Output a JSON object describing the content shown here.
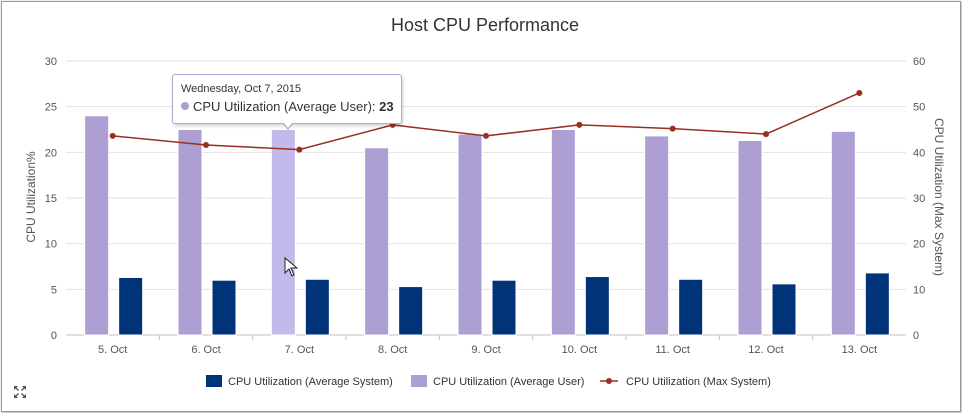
{
  "chart_data": {
    "type": "bar",
    "title": "Host CPU Performance",
    "categories": [
      "5. Oct",
      "6. Oct",
      "7. Oct",
      "8. Oct",
      "9. Oct",
      "10. Oct",
      "11. Oct",
      "12. Oct",
      "13. Oct"
    ],
    "series": [
      {
        "name": "CPU Utilization (Average User)",
        "type": "bar",
        "axis": "left",
        "color": "#ad9fd3",
        "values": [
          24,
          22.5,
          22.5,
          20.5,
          22,
          22.5,
          21.8,
          21.3,
          22.3
        ]
      },
      {
        "name": "CPU Utilization (Average System)",
        "type": "bar",
        "axis": "left",
        "color": "#003378",
        "values": [
          6.3,
          6.0,
          6.1,
          5.3,
          6.0,
          6.4,
          6.1,
          5.6,
          6.8
        ]
      },
      {
        "name": "CPU Utilization (Max System)",
        "type": "line",
        "axis": "right",
        "color": "#992f20",
        "values": [
          43.6,
          41.6,
          40.6,
          46.0,
          43.6,
          46.0,
          45.2,
          44.0,
          53.0
        ]
      }
    ],
    "ylabel": "CPU Utilization%",
    "ylim": [
      0,
      30
    ],
    "yticks": [
      "0",
      "5",
      "10",
      "15",
      "20",
      "25",
      "30"
    ],
    "y2label": "CPU Utilization (Max System)",
    "y2lim": [
      0,
      60
    ],
    "y2ticks": [
      "0",
      "10",
      "20",
      "30",
      "40",
      "50",
      "60"
    ],
    "legend": {
      "placement": "bottom",
      "items": [
        "CPU Utilization (Average System)",
        "CPU Utilization (Average User)",
        "CPU Utilization (Max System)"
      ]
    },
    "grid": true,
    "highlight": {
      "index": 2,
      "color": "#c4b9eb"
    }
  },
  "tooltip": {
    "date": "Wednesday, Oct 7, 2015",
    "label": "CPU Utilization (Average User):",
    "value": "23",
    "dot_color": "#ad9fd3"
  },
  "controls": {
    "expand_icon": "expand-icon"
  }
}
